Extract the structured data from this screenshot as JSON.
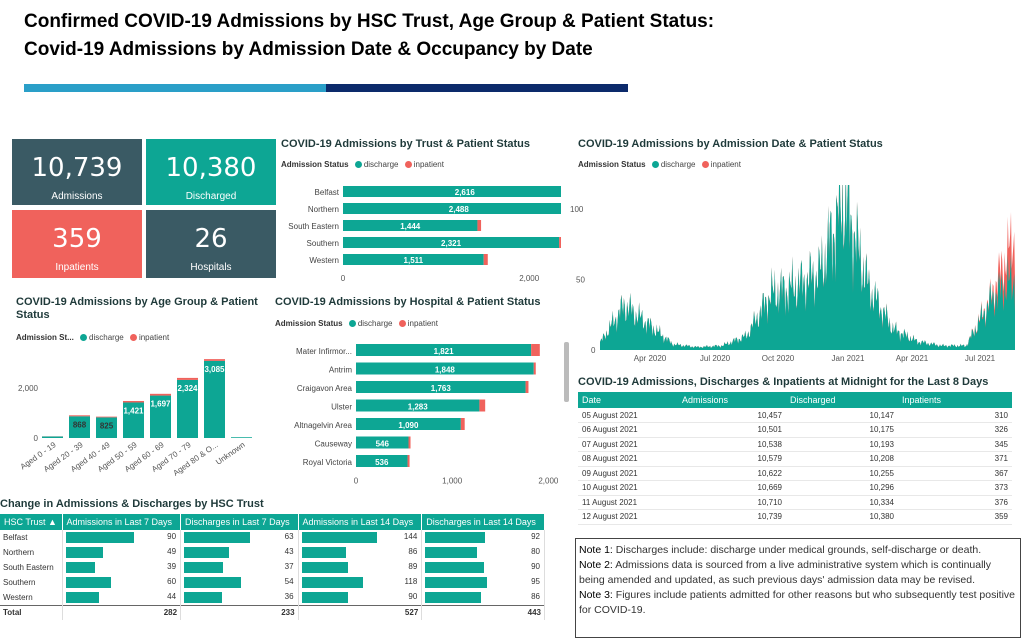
{
  "header": {
    "title_line1": "Confirmed COVID-19 Admissions by HSC Trust, Age Group & Patient Status:",
    "title_line2": "Covid-19 Admissions by Admission Date & Occupancy by Date"
  },
  "colors": {
    "discharge": "#0da694",
    "inpatient": "#f0625c",
    "card_dark": "#3a5a64",
    "card_teal": "#0da694",
    "card_red": "#f0625c"
  },
  "cards": [
    {
      "value": "10,739",
      "label": "Admissions"
    },
    {
      "value": "10,380",
      "label": "Discharged"
    },
    {
      "value": "359",
      "label": "Inpatients"
    },
    {
      "value": "26",
      "label": "Hospitals"
    }
  ],
  "legend": {
    "label": "Admission Status",
    "label_short": "Admission St...",
    "discharge": "discharge",
    "inpatient": "inpatient"
  },
  "trust_chart": {
    "title": "COVID-19 Admissions by Trust & Patient Status",
    "categories": [
      "Belfast",
      "Northern",
      "South Eastern",
      "Southern",
      "Western"
    ],
    "discharge": [
      2616,
      2488,
      1444,
      2321,
      1511
    ],
    "inpatient": [
      90,
      49,
      39,
      60,
      44
    ],
    "labels": [
      "2,616",
      "2,488",
      "1,444",
      "2,321",
      "1,511"
    ],
    "ticks": [
      "0",
      "2,000"
    ]
  },
  "age_chart": {
    "title": "COVID-19 Admissions by Age Group & Patient Status",
    "categories": [
      "Aged 0 - 19",
      "Aged 20 - 39",
      "Aged 40 - 49",
      "Aged 50 - 59",
      "Aged 60 - 69",
      "Aged 70 - 79",
      "Aged 80 & O...",
      "Unknown"
    ],
    "discharge": [
      60,
      868,
      825,
      1421,
      1697,
      2324,
      3085,
      30
    ],
    "inpatient": [
      5,
      40,
      30,
      60,
      70,
      80,
      70,
      0
    ],
    "labels": [
      "",
      "868",
      "825",
      "1,421",
      "1,697",
      "2,324",
      "3,085",
      ""
    ],
    "ticks": [
      "0",
      "2,000"
    ]
  },
  "hospital_chart": {
    "title": "COVID-19 Admissions by Hospital & Patient Status",
    "categories": [
      "Mater Infirmor...",
      "Antrim",
      "Craigavon Area",
      "Ulster",
      "Altnagelvin Area",
      "Causeway",
      "Royal Victoria"
    ],
    "discharge": [
      1821,
      1848,
      1763,
      1283,
      1090,
      546,
      536
    ],
    "inpatient": [
      90,
      20,
      30,
      60,
      40,
      5,
      20
    ],
    "labels": [
      "1,821",
      "1,848",
      "1,763",
      "1,283",
      "1,090",
      "546",
      "536"
    ],
    "ticks": [
      "0",
      "1,000",
      "2,000"
    ]
  },
  "date_chart": {
    "title": "COVID-19 Admissions by Admission Date & Patient Status",
    "y_ticks": [
      "100",
      "50",
      "0"
    ],
    "x_ticks": [
      "Apr 2020",
      "Jul 2020",
      "Oct 2020",
      "Jan 2021",
      "Apr 2021",
      "Jul 2021"
    ]
  },
  "chart_data": [
    {
      "type": "bar",
      "title": "COVID-19 Admissions by Trust & Patient Status",
      "categories": [
        "Belfast",
        "Northern",
        "South Eastern",
        "Southern",
        "Western"
      ],
      "series": [
        {
          "name": "discharge",
          "values": [
            2616,
            2488,
            1444,
            2321,
            1511
          ]
        },
        {
          "name": "inpatient",
          "values": [
            90,
            49,
            39,
            60,
            44
          ]
        }
      ]
    },
    {
      "type": "bar",
      "title": "COVID-19 Admissions by Age Group & Patient Status",
      "categories": [
        "Aged 0 - 19",
        "Aged 20 - 39",
        "Aged 40 - 49",
        "Aged 50 - 59",
        "Aged 60 - 69",
        "Aged 70 - 79",
        "Aged 80 & O...",
        "Unknown"
      ],
      "series": [
        {
          "name": "discharge",
          "values": [
            60,
            868,
            825,
            1421,
            1697,
            2324,
            3085,
            30
          ]
        },
        {
          "name": "inpatient",
          "values": [
            5,
            40,
            30,
            60,
            70,
            80,
            70,
            0
          ]
        }
      ]
    },
    {
      "type": "bar",
      "title": "COVID-19 Admissions by Hospital & Patient Status",
      "categories": [
        "Mater Infirmor...",
        "Antrim",
        "Craigavon Area",
        "Ulster",
        "Altnagelvin Area",
        "Causeway",
        "Royal Victoria"
      ],
      "series": [
        {
          "name": "discharge",
          "values": [
            1821,
            1848,
            1763,
            1283,
            1090,
            546,
            536
          ]
        },
        {
          "name": "inpatient",
          "values": [
            90,
            20,
            30,
            60,
            40,
            5,
            20
          ]
        }
      ]
    },
    {
      "type": "area",
      "title": "COVID-19 Admissions by Admission Date & Patient Status",
      "x": [
        "Mar 2020",
        "Apr 2020",
        "May 2020",
        "Jun 2020",
        "Jul 2020",
        "Aug 2020",
        "Sep 2020",
        "Oct 2020",
        "Nov 2020",
        "Dec 2020",
        "Jan 2021",
        "Feb 2021",
        "Mar 2021",
        "Apr 2021",
        "May 2021",
        "Jun 2021",
        "Jul 2021",
        "Aug 2021"
      ],
      "series": [
        {
          "name": "discharge",
          "values": [
            5,
            32,
            18,
            4,
            2,
            3,
            10,
            40,
            45,
            55,
            108,
            45,
            15,
            6,
            3,
            3,
            35,
            52
          ]
        },
        {
          "name": "inpatient",
          "values": [
            0,
            0,
            0,
            0,
            0,
            0,
            0,
            0,
            0,
            0,
            0,
            0,
            0,
            0,
            0,
            0,
            2,
            30
          ]
        }
      ],
      "ylim": [
        0,
        110
      ]
    }
  ],
  "midnight_table": {
    "title": "COVID-19 Admissions, Discharges & Inpatients at Midnight for the Last 8 Days",
    "columns": [
      "Date",
      "Admissions",
      "Discharged",
      "Inpatients"
    ],
    "rows": [
      [
        "05 August 2021",
        "10,457",
        "10,147",
        "310"
      ],
      [
        "06 August 2021",
        "10,501",
        "10,175",
        "326"
      ],
      [
        "07 August 2021",
        "10,538",
        "10,193",
        "345"
      ],
      [
        "08 August 2021",
        "10,579",
        "10,208",
        "371"
      ],
      [
        "09 August 2021",
        "10,622",
        "10,255",
        "367"
      ],
      [
        "10 August 2021",
        "10,669",
        "10,296",
        "373"
      ],
      [
        "11 August 2021",
        "10,710",
        "10,334",
        "376"
      ],
      [
        "12 August 2021",
        "10,739",
        "10,380",
        "359"
      ]
    ]
  },
  "change_table": {
    "title": "Change in Admissions & Discharges by HSC Trust",
    "columns": [
      "HSC Trust",
      "Admissions in Last 7 Days",
      "Discharges in Last 7 Days",
      "Admissions in Last 14 Days",
      "Discharges in Last 14 Days"
    ],
    "rows": [
      [
        "Belfast",
        "90",
        "63",
        "144",
        "92"
      ],
      [
        "Northern",
        "49",
        "43",
        "86",
        "80"
      ],
      [
        "South Eastern",
        "39",
        "37",
        "89",
        "90"
      ],
      [
        "Southern",
        "60",
        "54",
        "118",
        "95"
      ],
      [
        "Western",
        "44",
        "36",
        "90",
        "86"
      ]
    ],
    "total": [
      "Total",
      "282",
      "233",
      "527",
      "443"
    ]
  },
  "notes": [
    {
      "label": "Note 1:",
      "text": " Discharges include: discharge under medical grounds, self-discharge or death."
    },
    {
      "label": "Note 2:",
      "text": " Admissions data is sourced from a live administrative system which is continually being amended and updated, as such previous days' admission data may be revised."
    },
    {
      "label": "Note 3:",
      "text": " Figures include patients admitted for other reasons but who subsequently test positive for COVID-19."
    }
  ]
}
